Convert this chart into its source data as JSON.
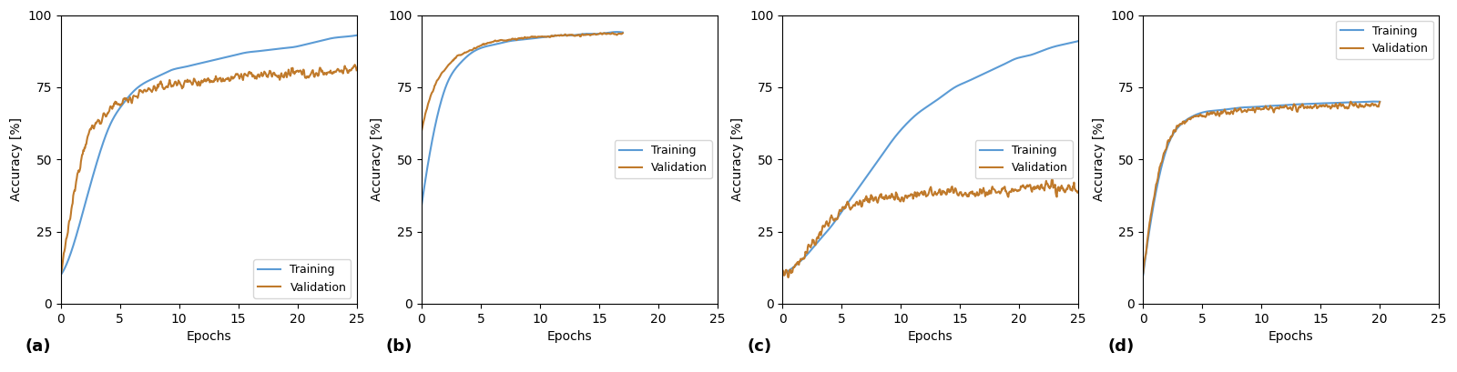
{
  "subplots": [
    {
      "label": "(a)",
      "xlim": [
        0,
        25
      ],
      "ylim": [
        0,
        100
      ],
      "xticks": [
        0,
        5,
        10,
        15,
        20,
        25
      ],
      "yticks": [
        0,
        25,
        50,
        75,
        100
      ],
      "legend_loc": "lower right",
      "n_epochs": 25,
      "train_curve": [
        10,
        20,
        35,
        50,
        62,
        69,
        74,
        77,
        79,
        81,
        82,
        83,
        84,
        85,
        86,
        87,
        87.5,
        88,
        88.5,
        89,
        90,
        91,
        92,
        92.5,
        93
      ],
      "val_curve": [
        10,
        36,
        56,
        63,
        67,
        70,
        72,
        74,
        75,
        76,
        76.5,
        77,
        77.5,
        78,
        78.5,
        79,
        79,
        79.5,
        79,
        80,
        79.5,
        80,
        80.5,
        81,
        81
      ],
      "val_noise": 1.2
    },
    {
      "label": "(b)",
      "xlim": [
        0,
        25
      ],
      "ylim": [
        0,
        100
      ],
      "xticks": [
        0,
        5,
        10,
        15,
        20,
        25
      ],
      "yticks": [
        0,
        25,
        50,
        75,
        100
      ],
      "legend_loc": "center right",
      "n_epochs": 17,
      "train_curve": [
        34,
        60,
        76,
        83,
        87,
        89,
        90,
        91,
        91.5,
        92,
        92.5,
        93,
        93,
        93.5,
        93.5,
        94,
        94
      ],
      "val_curve": [
        60,
        75,
        82,
        86,
        88,
        90,
        91,
        91.5,
        92,
        92.5,
        92.5,
        93,
        93,
        93,
        93.5,
        93.5,
        93.5
      ],
      "val_noise": 0.3
    },
    {
      "label": "(c)",
      "xlim": [
        0,
        25
      ],
      "ylim": [
        0,
        100
      ],
      "xticks": [
        0,
        5,
        10,
        15,
        20,
        25
      ],
      "yticks": [
        0,
        25,
        50,
        75,
        100
      ],
      "legend_loc": "center right",
      "n_epochs": 25,
      "train_curve": [
        10,
        13,
        17,
        22,
        27,
        33,
        39,
        45,
        51,
        57,
        62,
        66,
        69,
        72,
        75,
        77,
        79,
        81,
        83,
        85,
        86,
        87.5,
        89,
        90,
        91
      ],
      "val_curve": [
        10,
        13,
        18,
        24,
        29,
        33,
        35,
        36,
        36.5,
        37,
        37.5,
        38,
        38.5,
        38,
        39,
        38.5,
        39,
        39,
        39.5,
        39.5,
        40,
        40,
        40,
        40,
        40
      ],
      "val_noise": 1.5
    },
    {
      "label": "(d)",
      "xlim": [
        0,
        25
      ],
      "ylim": [
        0,
        100
      ],
      "xticks": [
        0,
        5,
        10,
        15,
        20,
        25
      ],
      "yticks": [
        0,
        25,
        50,
        75,
        100
      ],
      "legend_loc": "upper right",
      "n_epochs": 20,
      "train_curve": [
        10,
        38,
        55,
        62,
        65,
        66.5,
        67,
        67.5,
        68,
        68.2,
        68.5,
        68.7,
        69,
        69.2,
        69.4,
        69.5,
        69.7,
        69.8,
        70,
        70
      ],
      "val_curve": [
        10,
        40,
        56,
        62,
        64.5,
        65.5,
        66,
        66.5,
        67,
        67.2,
        67.5,
        67.7,
        68,
        68,
        68.2,
        68.5,
        68.5,
        68.7,
        68.8,
        69
      ],
      "val_noise": 0.8
    }
  ],
  "training_color": "#5B9BD5",
  "validation_color": "#C07A2B",
  "xlabel": "Epochs",
  "ylabel": "Accuracy [%]",
  "training_label": "Training",
  "validation_label": "Validation",
  "linewidth": 1.5,
  "figsize": [
    16.0,
    4.09
  ],
  "dpi": 100
}
